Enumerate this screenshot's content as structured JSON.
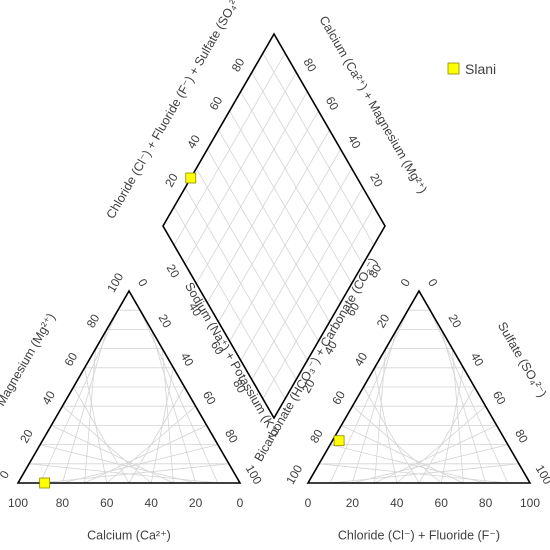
{
  "chart_data": {
    "type": "scatter",
    "subtype": "piper-diagram",
    "colors": {
      "marker": "#ffff00",
      "marker_edge": "#8a8a00",
      "outline": "#000000",
      "grid": "#d4d4d4",
      "text": "#404040"
    },
    "grid_step": 10,
    "legend": {
      "position": "top-right",
      "entries": [
        {
          "label": "Slani",
          "marker": "square",
          "color": "#ffff00"
        }
      ]
    },
    "cation_triangle": {
      "axes": {
        "bottom": {
          "label": "Calcium (Ca²⁺)",
          "ticks": [
            "100",
            "80",
            "60",
            "40",
            "20",
            "0"
          ]
        },
        "left": {
          "label": "Magnesium (Mg²⁺)",
          "ticks": [
            "0",
            "20",
            "40",
            "60",
            "80",
            "100"
          ]
        },
        "right": {
          "label": "Sodium (Na⁺) + Potassium (K⁺)",
          "ticks": [
            "0",
            "20",
            "40",
            "60",
            "80",
            "100"
          ]
        }
      }
    },
    "anion_triangle": {
      "axes": {
        "bottom": {
          "label": "Chloride (Cl⁻) + Fluoride (F⁻)",
          "ticks": [
            "0",
            "20",
            "40",
            "60",
            "80",
            "100"
          ]
        },
        "left": {
          "label": "Bicarbonate (HCO₃⁻) + Carbonate (CO₃⁻)",
          "ticks": [
            "100",
            "80",
            "60",
            "40",
            "20",
            "0"
          ]
        },
        "right": {
          "label": "Sulfate (SO₄²⁻)",
          "ticks": [
            "0",
            "20",
            "40",
            "60",
            "80",
            "100"
          ]
        }
      }
    },
    "diamond": {
      "axes": {
        "upper_left": {
          "label": "Chloride (Cl⁻) + Fluoride (F⁻) + Sulfate (SO₄²⁻)",
          "ticks": [
            "20",
            "40",
            "60",
            "80"
          ]
        },
        "upper_right": {
          "label": "Calcium (Ca²⁺) + Magnesium (Mg²⁺)",
          "ticks": [
            "80",
            "60",
            "40",
            "20"
          ]
        },
        "lower_left": {
          "ticks": [
            "20",
            "40",
            "60",
            "80"
          ]
        },
        "lower_right": {
          "ticks": [
            "20",
            "40",
            "60",
            "80"
          ]
        }
      }
    },
    "series": [
      {
        "name": "Slani",
        "samples": [
          {
            "Ca": 88,
            "Mg": 12,
            "NaK": 0,
            "HCO3CO3": 75,
            "ClF": 3,
            "SO4": 22,
            "ClF_SO4": 25,
            "CaMg": 100
          }
        ]
      }
    ]
  }
}
